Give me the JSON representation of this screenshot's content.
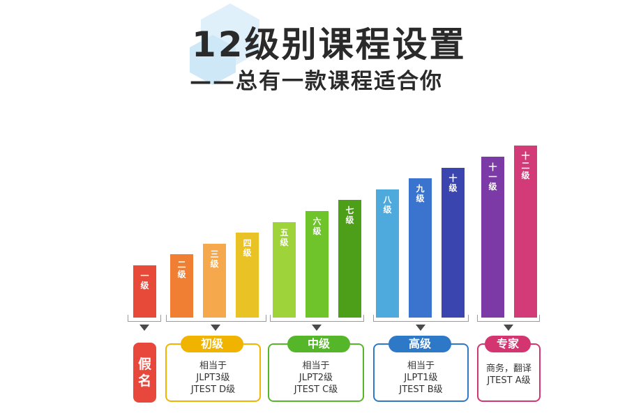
{
  "header": {
    "title": "12级别课程设置",
    "subtitle": "——总有一款课程适合你"
  },
  "levels": [
    {
      "label": "一级",
      "level": 1,
      "color": "#e84a3a"
    },
    {
      "label": "二级",
      "level": 2,
      "color": "#f07e33"
    },
    {
      "label": "三级",
      "level": 3,
      "color": "#f6a84c"
    },
    {
      "label": "四级",
      "level": 4,
      "color": "#e9c225"
    },
    {
      "label": "五级",
      "level": 5,
      "color": "#9fd33a"
    },
    {
      "label": "六级",
      "level": 6,
      "color": "#6ec42a"
    },
    {
      "label": "七级",
      "level": 7,
      "color": "#4d9f19"
    },
    {
      "label": "八级",
      "level": 8,
      "color": "#4ea9dd"
    },
    {
      "label": "九级",
      "level": 9,
      "color": "#3b74cf"
    },
    {
      "label": "十级",
      "level": 10,
      "color": "#3a45b0"
    },
    {
      "label": "十一级",
      "level": 11,
      "color": "#7c3aa6"
    },
    {
      "label": "十二级",
      "level": 12,
      "color": "#d23a78"
    }
  ],
  "stages": {
    "pseudo": {
      "label": "假名"
    },
    "beginner": {
      "title": "初级",
      "lines": [
        "相当于",
        "JLPT3级",
        "JTEST D级"
      ],
      "color": "#f0b400"
    },
    "intermediate": {
      "title": "中级",
      "lines": [
        "相当于",
        "JLPT2级",
        "JTEST C级"
      ],
      "color": "#56b62a"
    },
    "advanced": {
      "title": "高级",
      "lines": [
        "相当于",
        "JLPT1级",
        "JTEST B级"
      ],
      "color": "#2e78c8"
    },
    "expert": {
      "title": "专家",
      "lines": [
        "商务，翻译",
        "JTEST A级"
      ],
      "color": "#d2356f"
    }
  }
}
